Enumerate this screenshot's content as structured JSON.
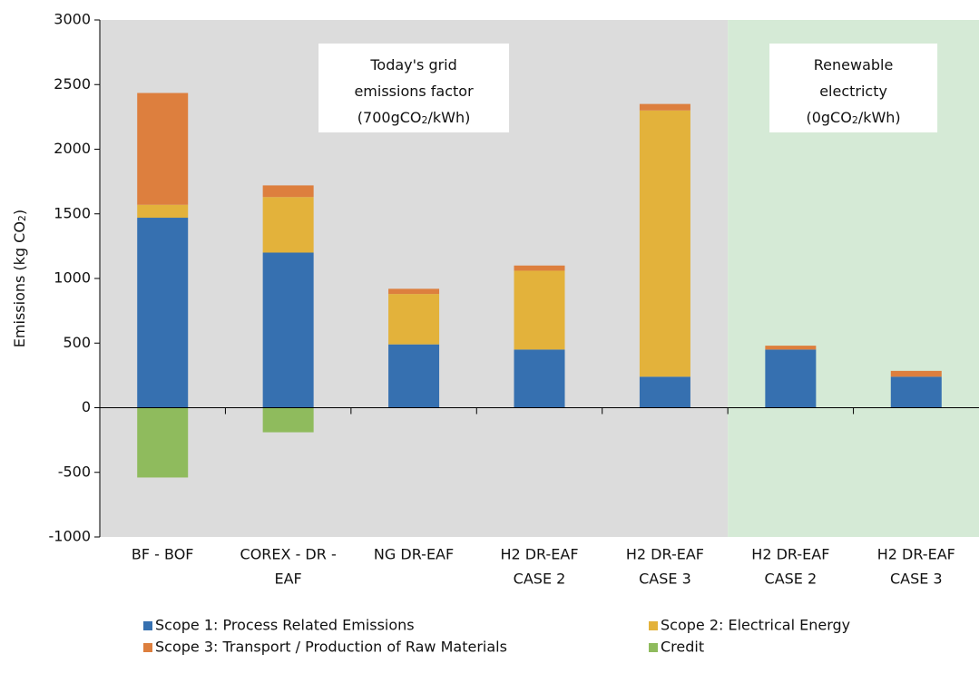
{
  "chart_data": {
    "type": "stacked_bar",
    "ylabel": [
      "Emissions (kg CO",
      "2",
      ")"
    ],
    "categories": [
      [
        "BF - BOF"
      ],
      [
        "COREX - DR -",
        "EAF"
      ],
      [
        "NG DR-EAF"
      ],
      [
        "H2 DR-EAF",
        "CASE 2"
      ],
      [
        "H2 DR-EAF",
        "CASE 3"
      ],
      [
        "H2 DR-EAF",
        "CASE 2"
      ],
      [
        "H2 DR-EAF",
        "CASE 3"
      ]
    ],
    "series": [
      {
        "name": "Scope 1: Process Related Emissions",
        "color": "#3670b0",
        "values": [
          1470,
          1200,
          490,
          450,
          240,
          450,
          240
        ]
      },
      {
        "name": "Scope 2: Electrical Energy",
        "color": "#e3b23b",
        "values": [
          100,
          430,
          390,
          610,
          2060,
          null,
          null
        ]
      },
      {
        "name": "Scope 3: Transport / Production of Raw Materials",
        "color": "#dd7f3e",
        "values": [
          865,
          90,
          40,
          40,
          50,
          30,
          45
        ]
      },
      {
        "name": "Credit",
        "color": "#8fbb5d",
        "values": [
          -540,
          -190,
          null,
          null,
          null,
          null,
          null
        ]
      }
    ],
    "regions": [
      {
        "start": 0,
        "end": 4,
        "color": "#dcdcdc",
        "label": [
          [
            "Today's grid"
          ],
          [
            "emissions factor"
          ],
          [
            "(700gCO",
            "2",
            "/kWh)"
          ]
        ]
      },
      {
        "start": 5,
        "end": 6,
        "color": "#d5ead6",
        "label": [
          [
            "Renewable"
          ],
          [
            "electricty"
          ],
          [
            "(0gCO",
            "2",
            "/kWh)"
          ]
        ]
      }
    ],
    "ylim": [
      -1000,
      3000
    ],
    "yticks": [
      -1000,
      -500,
      0,
      500,
      1000,
      1500,
      2000,
      2500,
      3000
    ]
  }
}
